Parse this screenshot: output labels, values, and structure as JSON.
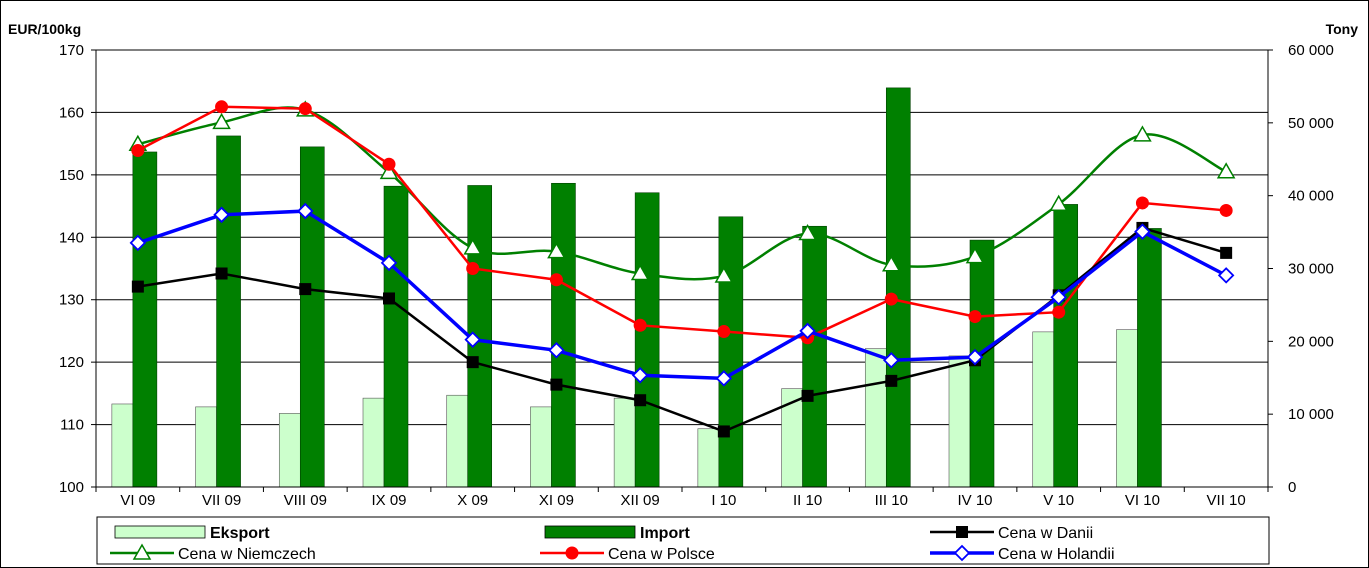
{
  "chart_data": {
    "type": "bar-line-combo",
    "y_left_label": "EUR/100kg",
    "y_right_label": "Tony",
    "y_left_lim": [
      100,
      170
    ],
    "y_left_ticks": [
      100,
      110,
      120,
      130,
      140,
      150,
      160,
      170
    ],
    "y_right_lim": [
      0,
      60000
    ],
    "y_right_ticks": [
      {
        "value": 0,
        "label": "0"
      },
      {
        "value": 10000,
        "label": "10 000"
      },
      {
        "value": 20000,
        "label": "20 000"
      },
      {
        "value": 30000,
        "label": "30 000"
      },
      {
        "value": 40000,
        "label": "40 000"
      },
      {
        "value": 50000,
        "label": "50 000"
      },
      {
        "value": 60000,
        "label": "60 000"
      }
    ],
    "categories": [
      "VI 09",
      "VII 09",
      "VIII 09",
      "IX 09",
      "X 09",
      "XI 09",
      "XII 09",
      "I 10",
      "II 10",
      "III 10",
      "IV 10",
      "V 10",
      "VI 10",
      "VII 10"
    ],
    "gridlines": true,
    "legend_position": "bottom",
    "bar_series": [
      {
        "name": "Eksport",
        "axis": "right",
        "color": "#ccffcc",
        "values": [
          11400,
          11000,
          10100,
          12200,
          12600,
          11000,
          12200,
          8000,
          13500,
          19000,
          18000,
          21300,
          21600,
          null
        ]
      },
      {
        "name": "Import",
        "axis": "right",
        "color": "#008000",
        "values": [
          46000,
          48200,
          46700,
          41300,
          41400,
          41700,
          40400,
          37100,
          35800,
          54800,
          33900,
          38800,
          35500,
          null
        ]
      }
    ],
    "line_series": [
      {
        "name": "Cena w Danii",
        "axis": "left",
        "color": "#000000",
        "marker": "square",
        "values": [
          132.1,
          134.2,
          131.7,
          130.2,
          120.0,
          116.4,
          113.9,
          108.9,
          114.6,
          117.0,
          120.3,
          130.7,
          141.5,
          137.5
        ]
      },
      {
        "name": "Cena w Niemczech",
        "axis": "left",
        "color": "#008000",
        "marker": "triangle-open",
        "values": [
          154.9,
          158.4,
          160.4,
          150.4,
          138.3,
          137.7,
          134.2,
          133.8,
          140.6,
          135.6,
          136.9,
          145.3,
          156.4,
          150.5
        ]
      },
      {
        "name": "Cena w Polsce",
        "axis": "left",
        "color": "#ff0000",
        "marker": "circle",
        "values": [
          153.9,
          160.9,
          160.6,
          151.7,
          135.0,
          133.2,
          125.9,
          124.9,
          123.9,
          130.1,
          127.3,
          128.0,
          145.5,
          144.3
        ]
      },
      {
        "name": "Cena w Holandii",
        "axis": "left",
        "color": "#0000ff",
        "marker": "diamond-open",
        "values": [
          139.1,
          143.6,
          144.2,
          135.9,
          123.6,
          121.9,
          117.9,
          117.4,
          125.0,
          120.3,
          120.8,
          130.4,
          140.9,
          133.9
        ]
      }
    ]
  },
  "legend": {
    "items": [
      {
        "label": "Eksport",
        "kind": "bar",
        "color": "#ccffcc",
        "bold": true
      },
      {
        "label": "Import",
        "kind": "bar",
        "color": "#008000",
        "bold": true
      },
      {
        "label": "Cena w Danii",
        "kind": "line",
        "color": "#000000",
        "marker": "square"
      },
      {
        "label": "Cena w Niemczech",
        "kind": "line",
        "color": "#008000",
        "marker": "triangle-open"
      },
      {
        "label": "Cena w Polsce",
        "kind": "line",
        "color": "#ff0000",
        "marker": "circle"
      },
      {
        "label": "Cena w Holandii",
        "kind": "line",
        "color": "#0000ff",
        "marker": "diamond-open"
      }
    ]
  }
}
